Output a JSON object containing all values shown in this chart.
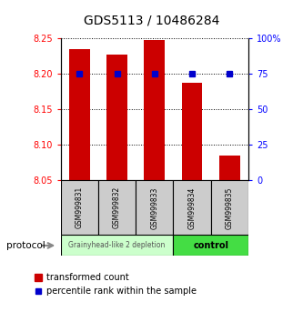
{
  "title": "GDS5113 / 10486284",
  "samples": [
    "GSM999831",
    "GSM999832",
    "GSM999833",
    "GSM999834",
    "GSM999835"
  ],
  "bar_values": [
    8.235,
    8.228,
    8.248,
    8.188,
    8.085
  ],
  "bar_bottom": 8.05,
  "percentile_values": [
    75,
    75,
    75,
    75,
    75
  ],
  "ylim_left": [
    8.05,
    8.25
  ],
  "ylim_right": [
    0,
    100
  ],
  "yticks_left": [
    8.05,
    8.1,
    8.15,
    8.2,
    8.25
  ],
  "yticks_right": [
    0,
    25,
    50,
    75,
    100
  ],
  "bar_color": "#cc0000",
  "percentile_color": "#0000cc",
  "group1_samples": [
    0,
    1,
    2
  ],
  "group2_samples": [
    3,
    4
  ],
  "group1_label": "Grainyhead-like 2 depletion",
  "group2_label": "control",
  "group1_color": "#ccffcc",
  "group2_color": "#44dd44",
  "protocol_label": "protocol",
  "legend_bar_label": "transformed count",
  "legend_pct_label": "percentile rank within the sample",
  "bar_width": 0.55,
  "background_color": "#ffffff",
  "sample_bg": "#cccccc",
  "title_fontsize": 10,
  "tick_fontsize": 7,
  "label_fontsize": 6,
  "legend_fontsize": 7
}
